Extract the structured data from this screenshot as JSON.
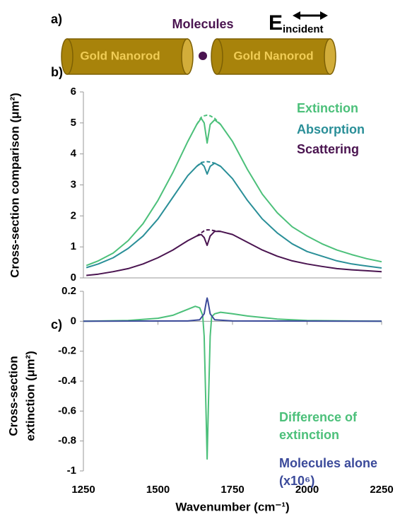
{
  "diagram": {
    "panel_label": "a)",
    "molecules": "Molecules",
    "e_main": "E",
    "e_sub": "incident",
    "rod_left": "Gold Nanorod",
    "rod_right": "Gold Nanorod"
  },
  "chart_data": [
    {
      "type": "line",
      "panel_label": "b)",
      "ylabel": "Cross-section comparison (μm²)",
      "xlim": [
        1250,
        2250
      ],
      "ylim": [
        0,
        6
      ],
      "yticks": [
        0,
        1,
        2,
        3,
        4,
        5,
        6
      ],
      "series": [
        {
          "name": "Extinction",
          "color": "#4cc07a",
          "x": [
            1260,
            1300,
            1350,
            1400,
            1450,
            1500,
            1550,
            1600,
            1630,
            1645,
            1655,
            1665,
            1675,
            1690,
            1710,
            1750,
            1800,
            1850,
            1900,
            1950,
            2000,
            2050,
            2100,
            2150,
            2200,
            2250
          ],
          "values": [
            0.4,
            0.55,
            0.8,
            1.2,
            1.75,
            2.5,
            3.4,
            4.4,
            4.95,
            5.15,
            5.0,
            4.35,
            4.95,
            5.1,
            4.95,
            4.4,
            3.5,
            2.7,
            2.1,
            1.65,
            1.35,
            1.1,
            0.9,
            0.75,
            0.62,
            0.52
          ]
        },
        {
          "name": "Absorption",
          "color": "#2a8f98",
          "x": [
            1260,
            1300,
            1350,
            1400,
            1450,
            1500,
            1550,
            1600,
            1630,
            1645,
            1655,
            1665,
            1675,
            1690,
            1710,
            1750,
            1800,
            1850,
            1900,
            1950,
            2000,
            2050,
            2100,
            2150,
            2200,
            2250
          ],
          "values": [
            0.33,
            0.45,
            0.65,
            0.95,
            1.35,
            1.9,
            2.6,
            3.3,
            3.6,
            3.7,
            3.6,
            3.35,
            3.6,
            3.7,
            3.6,
            3.2,
            2.5,
            1.9,
            1.45,
            1.1,
            0.85,
            0.7,
            0.55,
            0.45,
            0.38,
            0.32
          ]
        },
        {
          "name": "Scattering",
          "color": "#4a1450",
          "x": [
            1260,
            1300,
            1350,
            1400,
            1450,
            1500,
            1550,
            1600,
            1630,
            1645,
            1655,
            1665,
            1675,
            1690,
            1710,
            1750,
            1800,
            1850,
            1900,
            1950,
            2000,
            2050,
            2100,
            2150,
            2200,
            2250
          ],
          "values": [
            0.08,
            0.12,
            0.2,
            0.3,
            0.45,
            0.65,
            0.9,
            1.2,
            1.35,
            1.4,
            1.3,
            1.05,
            1.35,
            1.5,
            1.5,
            1.4,
            1.15,
            0.9,
            0.7,
            0.55,
            0.45,
            0.37,
            0.3,
            0.26,
            0.23,
            0.2
          ]
        },
        {
          "color": "#4cc07a",
          "dashed": true,
          "x": [
            1630,
            1645,
            1655,
            1665,
            1675,
            1690,
            1710
          ],
          "values": [
            4.95,
            5.18,
            5.23,
            5.25,
            5.23,
            5.15,
            4.95
          ]
        },
        {
          "color": "#2a8f98",
          "dashed": true,
          "x": [
            1630,
            1645,
            1655,
            1665,
            1675,
            1690,
            1710
          ],
          "values": [
            3.6,
            3.72,
            3.74,
            3.75,
            3.74,
            3.7,
            3.6
          ]
        },
        {
          "color": "#4a1450",
          "dashed": true,
          "x": [
            1630,
            1645,
            1655,
            1665,
            1675,
            1690,
            1710
          ],
          "values": [
            1.35,
            1.45,
            1.52,
            1.55,
            1.55,
            1.52,
            1.5
          ]
        }
      ]
    },
    {
      "type": "line",
      "panel_label": "c)",
      "ylabel": [
        "Cross-section",
        "extinction (μm²)"
      ],
      "xlabel": "Wavenumber (cm⁻¹)",
      "xlim": [
        1250,
        2250
      ],
      "xticks": [
        1250,
        1500,
        1750,
        2000,
        2250
      ],
      "ylim": [
        -1,
        0.2
      ],
      "yticks": [
        0.2,
        0,
        -0.2,
        -0.4,
        -0.6,
        -0.8,
        -1
      ],
      "series": [
        {
          "name": "Difference of extinction",
          "color": "#4cc07a",
          "x": [
            1250,
            1400,
            1500,
            1550,
            1600,
            1625,
            1640,
            1650,
            1655,
            1660,
            1665,
            1670,
            1675,
            1680,
            1690,
            1710,
            1750,
            1800,
            1900,
            2000,
            2250
          ],
          "values": [
            0,
            0.005,
            0.02,
            0.04,
            0.08,
            0.1,
            0.09,
            0.04,
            -0.1,
            -0.5,
            -0.92,
            -0.5,
            -0.1,
            0.03,
            0.05,
            0.06,
            0.05,
            0.035,
            0.015,
            0.005,
            0
          ]
        },
        {
          "name": "Molecules alone (x10⁶)",
          "color": "#3b4a9a",
          "x": [
            1250,
            1600,
            1640,
            1655,
            1662,
            1665,
            1668,
            1675,
            1690,
            1750,
            2250
          ],
          "values": [
            0,
            0.002,
            0.01,
            0.05,
            0.13,
            0.155,
            0.13,
            0.05,
            0.01,
            0.002,
            0
          ]
        }
      ]
    }
  ]
}
